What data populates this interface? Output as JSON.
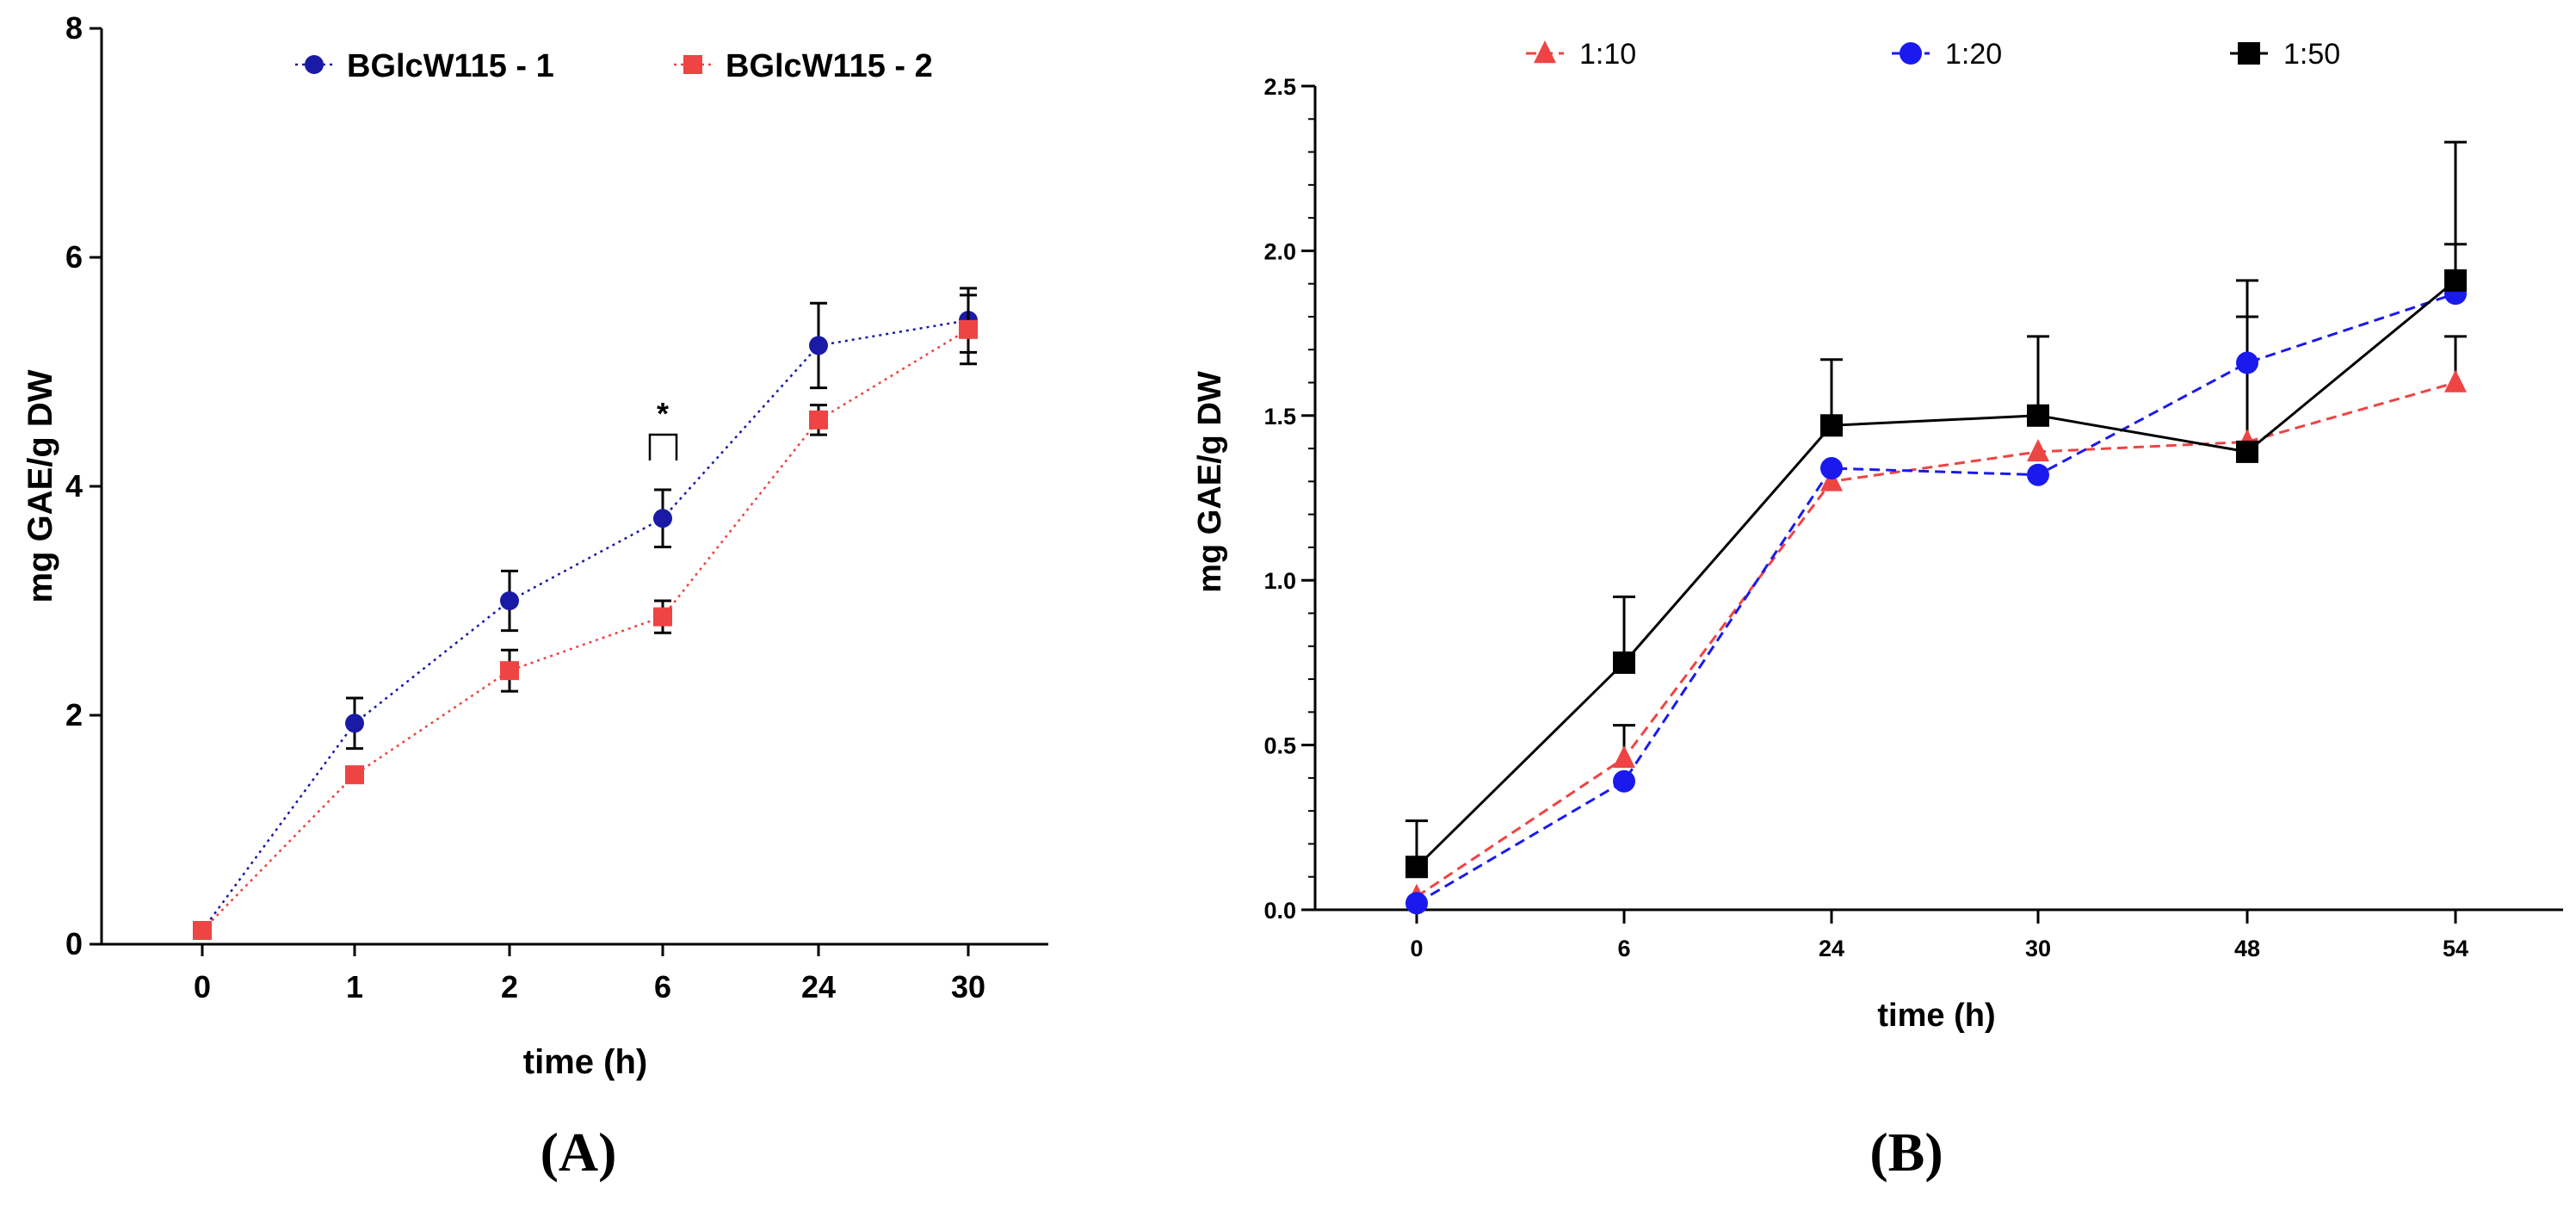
{
  "chart_data": [
    {
      "panel": "(A)",
      "type": "line",
      "categories": [
        "0",
        "1",
        "2",
        "6",
        "24",
        "30"
      ],
      "xlabel": "time (h)",
      "ylabel": "mg GAE/g DW",
      "ylim": [
        0,
        8
      ],
      "yticks": [
        "0",
        "2",
        "4",
        "6",
        "8"
      ],
      "legend_position": "top-center",
      "annotation": "*",
      "series": [
        {
          "name": "BGlcW115 - 1",
          "color": "#1a1aa6",
          "marker": "circle",
          "line": "dotted",
          "values": [
            0.12,
            1.93,
            3.0,
            3.72,
            5.23,
            5.45
          ],
          "errors": [
            0.03,
            0.22,
            0.26,
            0.25,
            0.37,
            0.28
          ]
        },
        {
          "name": "BGlcW115 - 2",
          "color": "#ee4444",
          "marker": "square",
          "line": "dotted",
          "values": [
            0.12,
            1.48,
            2.39,
            2.86,
            4.58,
            5.37
          ],
          "errors": [
            0.03,
            0.04,
            0.18,
            0.14,
            0.13,
            0.3
          ]
        }
      ]
    },
    {
      "panel": "(B)",
      "type": "line",
      "categories": [
        "0",
        "6",
        "24",
        "30",
        "48",
        "54"
      ],
      "xlabel": "time (h)",
      "ylabel": "mg GAE/g DW",
      "ylim": [
        0,
        2.5
      ],
      "yticks": [
        "0.0",
        "0.5",
        "1.0",
        "1.5",
        "2.0",
        "2.5"
      ],
      "legend_position": "top",
      "series": [
        {
          "name": "1:10",
          "color": "#ee4444",
          "marker": "triangle",
          "line": "dashed",
          "values": [
            0.04,
            0.46,
            1.3,
            1.39,
            1.42,
            1.6
          ],
          "errors": [
            0.0,
            0.1,
            0.0,
            0.0,
            0.0,
            0.14
          ]
        },
        {
          "name": "1:20",
          "color": "#1a1aee",
          "marker": "circle",
          "line": "dashed",
          "values": [
            0.02,
            0.39,
            1.34,
            1.32,
            1.66,
            1.87
          ],
          "errors": [
            0.0,
            0.0,
            0.0,
            0.0,
            0.14,
            0.15
          ]
        },
        {
          "name": "1:50",
          "color": "#000000",
          "marker": "square",
          "line": "solid",
          "values": [
            0.13,
            0.75,
            1.47,
            1.5,
            1.39,
            1.91
          ],
          "errors": [
            0.14,
            0.2,
            0.2,
            0.24,
            0.52,
            0.42
          ]
        }
      ]
    }
  ]
}
